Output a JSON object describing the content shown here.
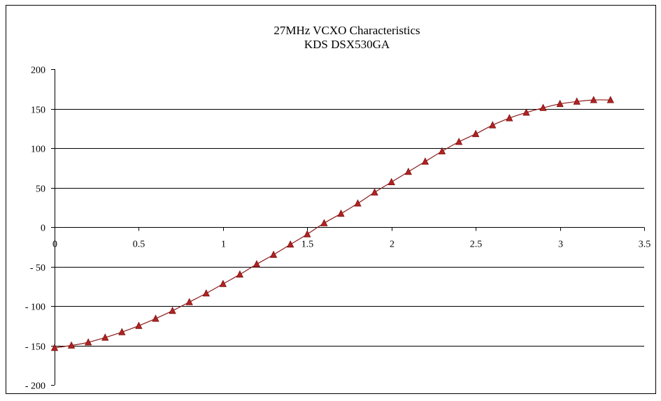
{
  "chart_data": {
    "type": "line",
    "title": "27MHz VCXO Characteristics",
    "subtitle": "KDS DSX530GA",
    "xlabel": "",
    "ylabel": "",
    "xlim": [
      0,
      3.5
    ],
    "ylim": [
      -200,
      200
    ],
    "x_ticks": [
      0,
      0.5,
      1,
      1.5,
      2,
      2.5,
      3,
      3.5
    ],
    "x_tick_labels": [
      "0",
      "0.5",
      "1",
      "1.5",
      "2",
      "2.5",
      "3",
      "3.5"
    ],
    "y_ticks": [
      200,
      150,
      100,
      50,
      0,
      -50,
      -100,
      -150,
      -200
    ],
    "y_tick_labels": [
      "200",
      "150",
      "100",
      "50",
      "0",
      "- 50",
      "- 100",
      "- 150",
      "- 200"
    ],
    "grid": "horizontal major gridlines",
    "legend": "none",
    "series": [
      {
        "color": "#8B1A1A",
        "marker": "triangle",
        "x": [
          0,
          0.1,
          0.2,
          0.3,
          0.4,
          0.5,
          0.6,
          0.7,
          0.8,
          0.9,
          1.0,
          1.1,
          1.2,
          1.3,
          1.4,
          1.5,
          1.6,
          1.7,
          1.8,
          1.9,
          2.0,
          2.1,
          2.2,
          2.3,
          2.4,
          2.5,
          2.6,
          2.7,
          2.8,
          2.9,
          3.0,
          3.1,
          3.2,
          3.3
        ],
        "values": [
          -153,
          -150,
          -146,
          -140,
          -133,
          -125,
          -116,
          -106,
          -95,
          -84,
          -72,
          -60,
          -47,
          -35,
          -22,
          -9,
          5,
          17,
          30,
          44,
          57,
          70,
          83,
          96,
          108,
          118,
          129,
          138,
          145,
          151,
          156,
          159,
          161,
          161
        ]
      }
    ]
  }
}
